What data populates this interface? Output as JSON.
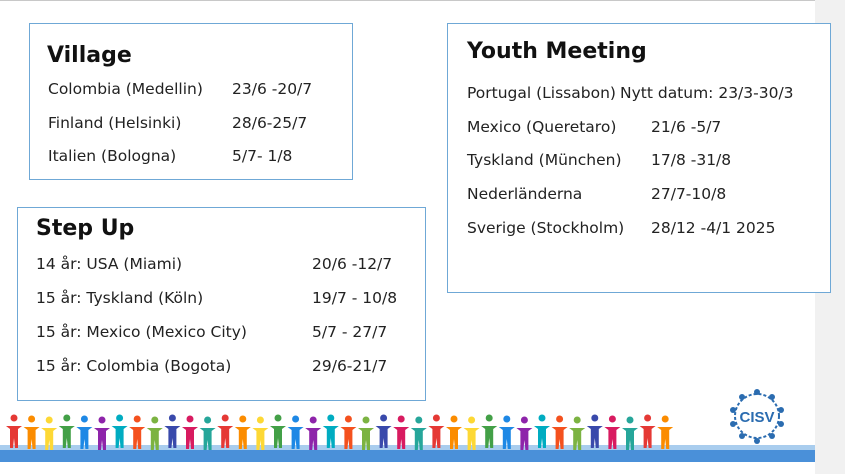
{
  "village": {
    "title": "Village",
    "rows": [
      {
        "place": "Colombia (Medellin)",
        "dates": "23/6 -20/7"
      },
      {
        "place": "Finland (Helsinki)",
        "dates": "28/6-25/7"
      },
      {
        "place": "Italien (Bologna)",
        "dates": "5/7- 1/8"
      }
    ]
  },
  "stepup": {
    "title": "Step Up",
    "rows": [
      {
        "place": "14 år: USA (Miami)",
        "dates": "20/6 -12/7"
      },
      {
        "place": "15 år: Tyskland (Köln)",
        "dates": "19/7 - 10/8"
      },
      {
        "place": "15 år: Mexico (Mexico City)",
        "dates": "5/7 - 27/7"
      },
      {
        "place": "15 år: Colombia (Bogota)",
        "dates": "29/6-21/7"
      }
    ]
  },
  "youth": {
    "title": "Youth Meeting",
    "rows": [
      {
        "place": "Portugal (Lissabon)",
        "dates": "Nytt datum: 23/3-30/3"
      },
      {
        "place": "Mexico (Queretaro)",
        "dates": "21/6 -5/7"
      },
      {
        "place": "Tyskland (München)",
        "dates": "17/8 -31/8"
      },
      {
        "place": "Nederländerna",
        "dates": "27/7-10/8"
      },
      {
        "place": "Sverige (Stockholm)",
        "dates": "28/12 -4/1 2025"
      }
    ]
  },
  "logo": {
    "text": "CISV",
    "color": "#2b6cb0"
  },
  "colors": {
    "border": "#6fa8d6",
    "ground": "#4a90d9"
  }
}
